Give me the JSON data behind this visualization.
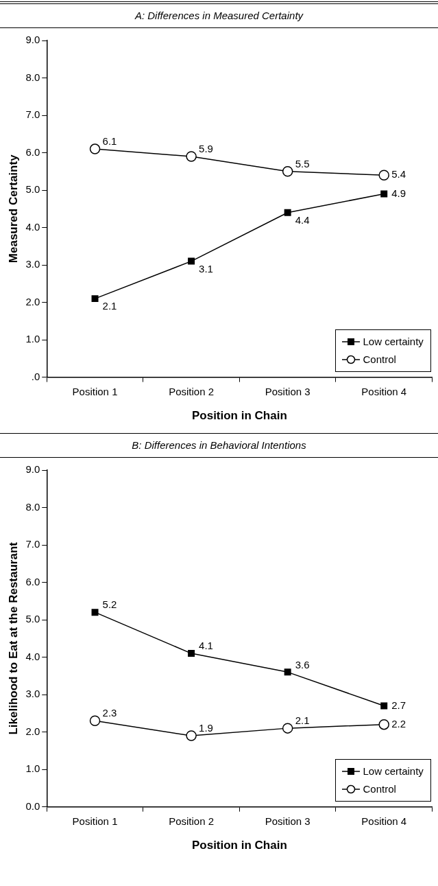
{
  "chart_data": [
    {
      "type": "line",
      "title": "A: Differences in Measured Certainty",
      "xlabel": "Position in Chain",
      "ylabel": "Measured Certainty",
      "categories": [
        "Position 1",
        "Position 2",
        "Position 3",
        "Position 4"
      ],
      "series": [
        {
          "name": "Low certainty",
          "color": "#000000",
          "marker": "square",
          "values": [
            2.1,
            3.1,
            4.4,
            4.9
          ]
        },
        {
          "name": "Control",
          "color": "#000000",
          "marker": "circle",
          "values": [
            6.1,
            5.9,
            5.5,
            5.4
          ]
        }
      ],
      "ylim": [
        0,
        9
      ],
      "yticks": [
        {
          "value": 0,
          "label": ".0"
        },
        {
          "value": 1,
          "label": "1.0"
        },
        {
          "value": 2,
          "label": "2.0"
        },
        {
          "value": 3,
          "label": "3.0"
        },
        {
          "value": 4,
          "label": "4.0"
        },
        {
          "value": 5,
          "label": "5.0"
        },
        {
          "value": 6,
          "label": "6.0"
        },
        {
          "value": 7,
          "label": "7.0"
        },
        {
          "value": 8,
          "label": "8.0"
        },
        {
          "value": 9,
          "label": "9.0"
        }
      ],
      "grid": false,
      "legend": "bottom right",
      "data_labels": true
    },
    {
      "type": "line",
      "title": "B: Differences in Behavioral Intentions",
      "xlabel": "Position in Chain",
      "ylabel": "Likelihood to Eat at the Restaurant",
      "categories": [
        "Position 1",
        "Position 2",
        "Position 3",
        "Position 4"
      ],
      "series": [
        {
          "name": "Low certainty",
          "color": "#000000",
          "marker": "square",
          "values": [
            5.2,
            4.1,
            3.6,
            2.7
          ]
        },
        {
          "name": "Control",
          "color": "#000000",
          "marker": "circle",
          "values": [
            2.3,
            1.9,
            2.1,
            2.2
          ]
        }
      ],
      "ylim": [
        0,
        9
      ],
      "yticks": [
        {
          "value": 0,
          "label": "0.0"
        },
        {
          "value": 1,
          "label": "1.0"
        },
        {
          "value": 2,
          "label": "2.0"
        },
        {
          "value": 3,
          "label": "3.0"
        },
        {
          "value": 4,
          "label": "4.0"
        },
        {
          "value": 5,
          "label": "5.0"
        },
        {
          "value": 6,
          "label": "6.0"
        },
        {
          "value": 7,
          "label": "7.0"
        },
        {
          "value": 8,
          "label": "8.0"
        },
        {
          "value": 9,
          "label": "9.0"
        }
      ],
      "grid": false,
      "legend": "bottom right",
      "data_labels": true
    }
  ]
}
